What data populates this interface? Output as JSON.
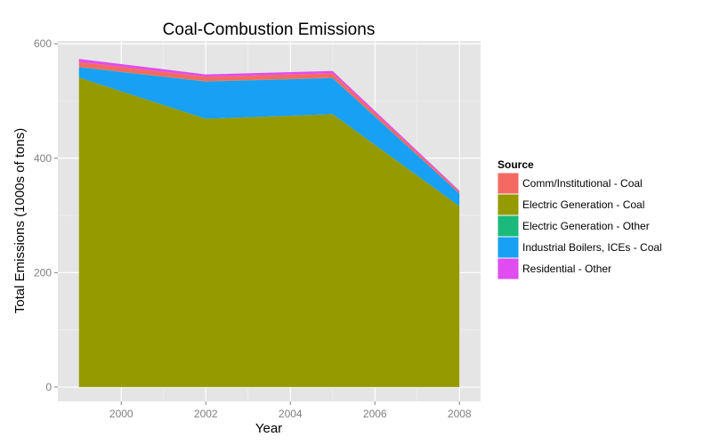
{
  "chart_data": {
    "type": "area",
    "stacked": true,
    "title": "Coal-Combustion Emissions",
    "xlabel": "Year",
    "ylabel": "Total Emissions (1000s of tons)",
    "x": [
      1999,
      2002,
      2005,
      2008
    ],
    "xlim": [
      1998.5,
      2008.5
    ],
    "ylim": [
      -25,
      605
    ],
    "x_ticks": [
      2000,
      2002,
      2004,
      2006,
      2008
    ],
    "y_ticks": [
      0,
      200,
      400,
      600
    ],
    "grid": true,
    "background": "#e5e5e5",
    "legend": {
      "title": "Source",
      "position": "right"
    },
    "series": [
      {
        "name": "Electric Generation - Coal",
        "color": "#949a00",
        "values": [
          541,
          469,
          477,
          316
        ]
      },
      {
        "name": "Industrial Boilers, ICEs - Coal",
        "color": "#17a0f4",
        "values": [
          18,
          65,
          63,
          22
        ]
      },
      {
        "name": "Electric Generation - Other",
        "color": "#1bb97c",
        "values": [
          0.5,
          0.5,
          0.5,
          0.3
        ]
      },
      {
        "name": "Comm/Institutional - Coal",
        "color": "#f46a62",
        "values": [
          9,
          8,
          8,
          3
        ]
      },
      {
        "name": "Residential - Other",
        "color": "#e14cf0",
        "values": [
          5,
          4,
          4,
          2
        ]
      }
    ],
    "legend_order": [
      "Comm/Institutional - Coal",
      "Electric Generation - Coal",
      "Electric Generation - Other",
      "Industrial Boilers, ICEs - Coal",
      "Residential - Other"
    ]
  }
}
